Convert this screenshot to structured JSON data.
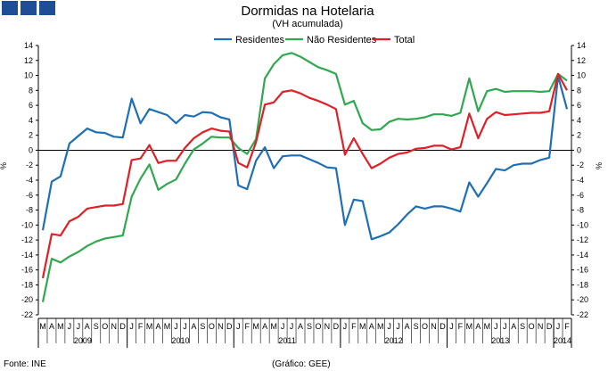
{
  "header": {
    "logo_icon": "ine-logo-icon"
  },
  "chart_data": {
    "type": "line",
    "title": "Dormidas na Hotelaria",
    "subtitle": "(VH acumulada)",
    "ylabel": "%",
    "ylim": [
      -22,
      14
    ],
    "yticks": [
      "14",
      "12",
      "10",
      "8",
      "6",
      "4",
      "2",
      "0",
      "-2",
      "-4",
      "-6",
      "-8",
      "-10",
      "-12",
      "-14",
      "-16",
      "-18",
      "-20",
      "-22"
    ],
    "grid": false,
    "legend_position": "top",
    "months": [
      "M",
      "A",
      "M",
      "J",
      "J",
      "A",
      "S",
      "O",
      "N",
      "D",
      "J",
      "F",
      "M",
      "A",
      "M",
      "J",
      "J",
      "A",
      "S",
      "O",
      "N",
      "D",
      "J",
      "F",
      "M",
      "A",
      "M",
      "J",
      "J",
      "A",
      "S",
      "O",
      "N",
      "D",
      "J",
      "F",
      "M",
      "A",
      "M",
      "J",
      "J",
      "A",
      "S",
      "O",
      "N",
      "D",
      "J",
      "F",
      "M",
      "A",
      "M",
      "J",
      "J",
      "A",
      "S",
      "O",
      "N",
      "D",
      "J",
      "F"
    ],
    "years": [
      {
        "label": "2009",
        "start": 0,
        "count": 10
      },
      {
        "label": "2010",
        "start": 10,
        "count": 12
      },
      {
        "label": "2011",
        "start": 22,
        "count": 12
      },
      {
        "label": "2012",
        "start": 34,
        "count": 12
      },
      {
        "label": "2013",
        "start": 46,
        "count": 12
      },
      {
        "label": "2014",
        "start": 58,
        "count": 2
      }
    ],
    "series": [
      {
        "name": "Residentes",
        "color": "#1f6fb5",
        "values": [
          -10.7,
          -4.2,
          -3.5,
          0.9,
          1.9,
          2.9,
          2.4,
          2.3,
          1.8,
          1.7,
          6.9,
          3.6,
          5.5,
          5.1,
          4.7,
          3.6,
          4.7,
          4.5,
          5.1,
          5.0,
          4.4,
          4.1,
          -4.7,
          -5.2,
          -1.4,
          0.4,
          -2.4,
          -0.8,
          -0.7,
          -0.7,
          -1.2,
          -1.7,
          -2.3,
          -2.4,
          -10.0,
          -6.6,
          -6.8,
          -11.9,
          -11.5,
          -11.0,
          -9.9,
          -8.6,
          -7.5,
          -7.8,
          -7.5,
          -7.5,
          -7.8,
          -8.2,
          -4.3,
          -6.2,
          -4.4,
          -2.5,
          -2.7,
          -2.0,
          -1.8,
          -1.8,
          -1.3,
          -1.0,
          9.9,
          5.5
        ]
      },
      {
        "name": "Não Residentes",
        "color": "#2fa84f",
        "values": [
          -20.3,
          -14.5,
          -15.0,
          -14.2,
          -13.6,
          -12.8,
          -12.2,
          -11.8,
          -11.6,
          -11.4,
          -6.2,
          -3.8,
          -1.9,
          -5.3,
          -4.5,
          -3.9,
          -1.8,
          0.1,
          0.9,
          1.8,
          1.7,
          1.7,
          0.3,
          -0.5,
          1.5,
          9.6,
          11.5,
          12.7,
          13.0,
          12.5,
          11.8,
          11.1,
          10.7,
          10.2,
          6.1,
          6.6,
          3.6,
          2.7,
          2.8,
          3.8,
          4.2,
          4.1,
          4.2,
          4.4,
          4.8,
          4.8,
          4.6,
          5.0,
          9.6,
          5.2,
          7.9,
          8.2,
          7.8,
          7.9,
          7.9,
          7.9,
          7.8,
          7.9,
          10.2,
          9.3
        ]
      },
      {
        "name": "Total",
        "color": "#e01f26",
        "values": [
          -17.1,
          -11.2,
          -11.4,
          -9.5,
          -8.9,
          -7.8,
          -7.6,
          -7.4,
          -7.4,
          -7.2,
          -1.3,
          -1.1,
          0.7,
          -1.7,
          -1.4,
          -1.4,
          0.3,
          1.6,
          2.4,
          2.9,
          2.6,
          2.5,
          -1.7,
          -2.3,
          1.1,
          6.1,
          6.4,
          7.8,
          8.0,
          7.6,
          7.0,
          6.6,
          6.1,
          5.5,
          -0.6,
          1.6,
          -0.5,
          -2.4,
          -1.8,
          -1.0,
          -0.5,
          -0.3,
          0.2,
          0.3,
          0.6,
          0.6,
          0.1,
          0.4,
          4.9,
          1.6,
          4.2,
          5.1,
          4.7,
          4.8,
          4.9,
          5.0,
          5.0,
          5.2,
          10.2,
          8.0
        ]
      }
    ]
  },
  "footer": {
    "source": "Fonte: INE",
    "credit": "(Gráfico: GEE)"
  }
}
